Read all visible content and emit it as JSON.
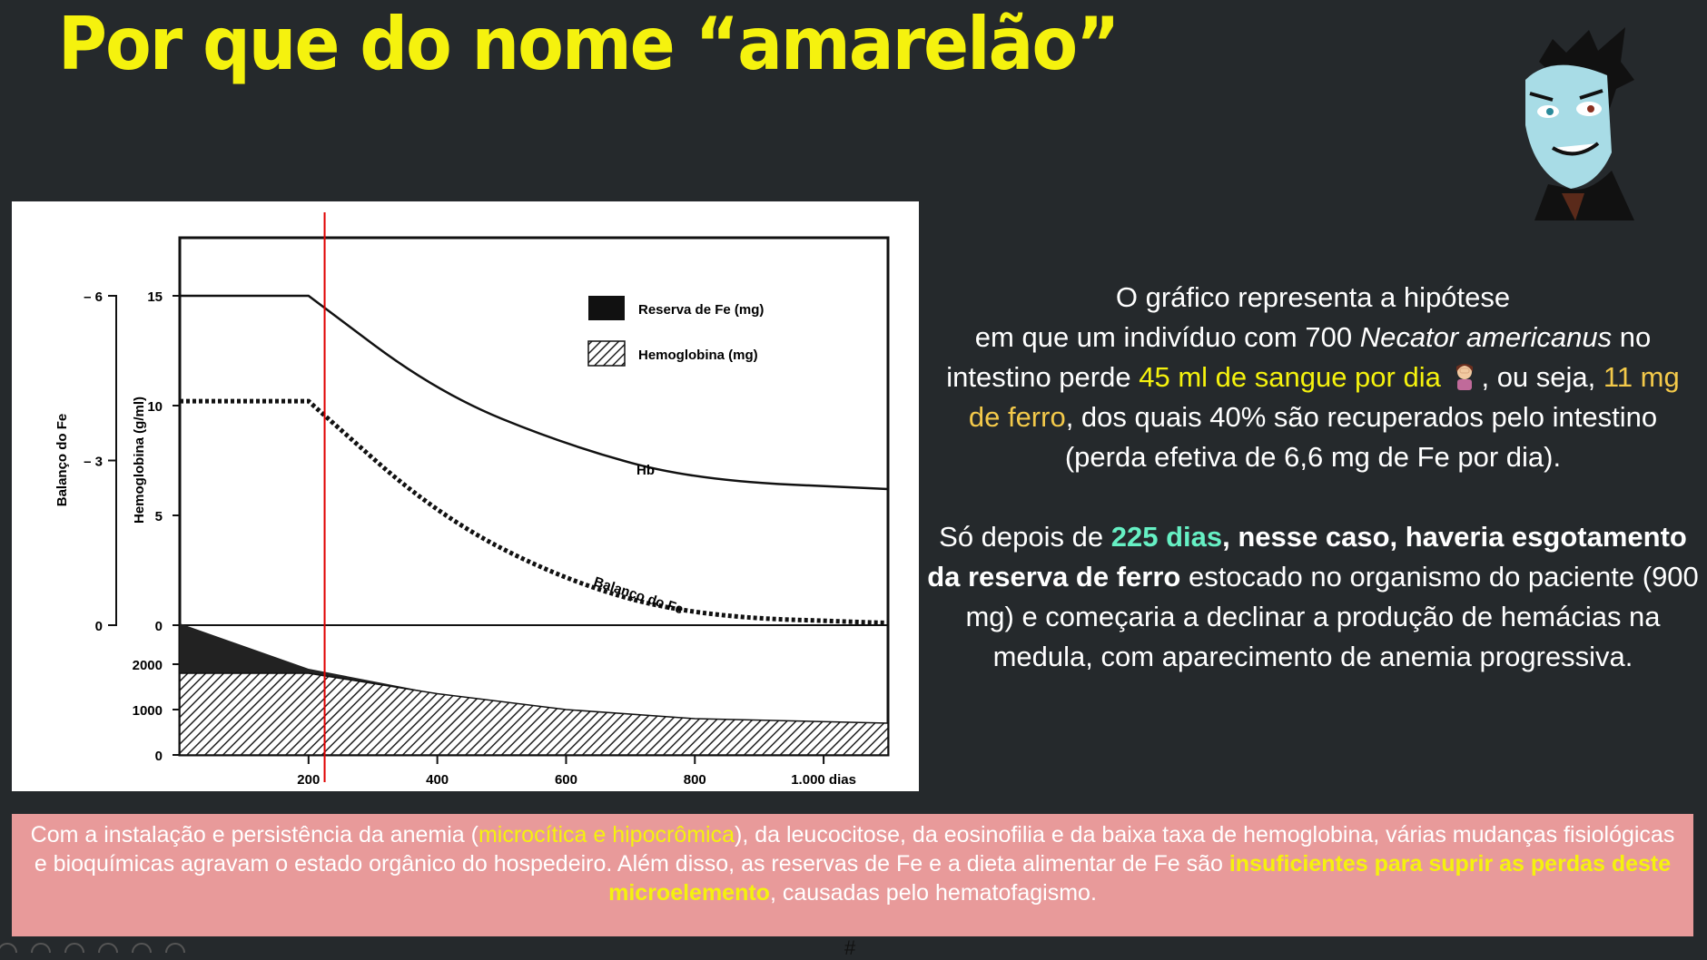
{
  "slide": {
    "title": "Por que do nome “amarelão”"
  },
  "chart_data": {
    "type": "line",
    "legend": [
      {
        "name": "Reserva de Fe (mg)",
        "style": "solid-fill"
      },
      {
        "name": "Hemoglobina (mg)",
        "style": "hatched-fill"
      }
    ],
    "series_labels": {
      "hb": "Hb",
      "fe": "Balanço do Fe"
    },
    "x_ticks": [
      "200",
      "400",
      "600",
      "800",
      "1.000 dias"
    ],
    "left_axis": {
      "label": "Balanço do Fe",
      "ticks": [
        "6",
        "3",
        "0"
      ]
    },
    "hb_axis": {
      "label": "Hemoglobina (g/ml)",
      "ticks": [
        "15",
        "10",
        "5",
        "0"
      ]
    },
    "lower_axis": {
      "ticks": [
        "2000",
        "1000",
        "0"
      ]
    },
    "marker_x": 225,
    "hb_series": {
      "x": [
        0,
        200,
        400,
        600,
        800,
        1100
      ],
      "y": [
        15,
        15,
        10.6,
        8.2,
        6.6,
        6.2
      ]
    },
    "fe_balance_series": {
      "x": [
        0,
        200,
        400,
        600,
        800,
        1100
      ],
      "y": [
        10.2,
        10.2,
        5.0,
        2.0,
        0.4,
        0.1
      ]
    },
    "hemoglobin_mg_series": {
      "x": [
        0,
        200,
        400,
        600,
        800,
        1100
      ],
      "y": [
        1800,
        1800,
        1350,
        1000,
        800,
        700
      ]
    },
    "fe_reserve_series": {
      "x": [
        0,
        200,
        400,
        600,
        800,
        1100
      ],
      "y": [
        2900,
        1900,
        1350,
        1000,
        800,
        700
      ]
    }
  },
  "explanation": {
    "p1_line1": "O gráfico representa a hipótese",
    "p1_line2_a": "em que um indivíduo com 700 ",
    "p1_line2_em": "Necator americanus",
    "p1_line2_b": " no",
    "p1_line3_a": "intestino perde ",
    "p1_line3_hl": "45 ml de sangue por dia",
    "p1_line3_b": ", ou seja, ",
    "p1_line3_hl2": "11 mg",
    "p1_line4_hl": "de ferro",
    "p1_line4_b": ", dos quais 40% são recuperados pelo intestino",
    "p1_line5": "(perda efetiva de 6,6 mg de Fe por dia).",
    "p2_a": "Só depois de ",
    "p2_hl": "225 dias",
    "p2_bold": ", nesse caso, haveria esgotamento da reserva de ferro",
    "p2_b": " estocado no organismo do paciente (900 mg) e começaria a declinar a produção de hemácias na medula, com aparecimento de anemia progressiva."
  },
  "footer": {
    "a": "Com a instalação e persistência da anemia (",
    "hl1": "microcítica e hipocrômica",
    "b": "), da leucocitose, da eosinofilia e da baixa taxa de hemoglobina, várias mudanças fisiológicas e bioquímicas agravam o estado orgânico do hospedeiro. Além disso, as reservas de Fe e a dieta alimentar de Fe são ",
    "hl2": "insuficientes para suprir as perdas deste microelemento",
    "c": ", causadas pelo hematofagismo."
  },
  "page_mark": "#"
}
